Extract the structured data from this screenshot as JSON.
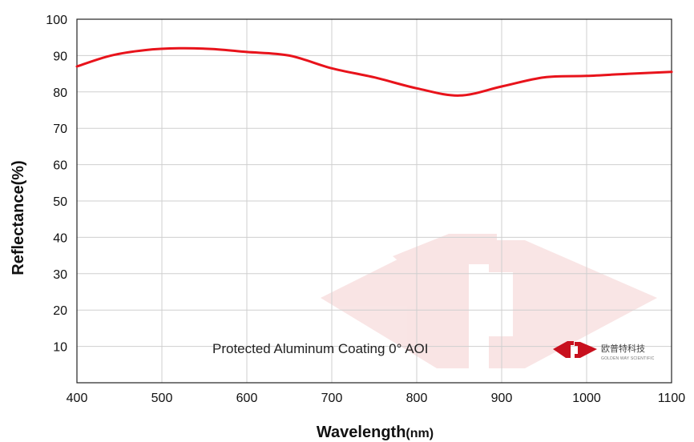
{
  "chart_data": {
    "type": "line",
    "title": "",
    "xlabel": "Wavelength",
    "xlabel_unit": "(nm)",
    "ylabel": "Reflectance(%)",
    "xlim": [
      400,
      1100
    ],
    "ylim": [
      0,
      100
    ],
    "xticks": [
      "400",
      "500",
      "600",
      "700",
      "800",
      "900",
      "1000",
      "1100"
    ],
    "yticks": [
      "10",
      "20",
      "30",
      "40",
      "50",
      "60",
      "70",
      "80",
      "90",
      "100"
    ],
    "grid": true,
    "series": [
      {
        "color": "#e8131b",
        "x": [
          400,
          440,
          480,
          520,
          560,
          600,
          650,
          700,
          750,
          800,
          850,
          900,
          950,
          1000,
          1050,
          1100
        ],
        "y": [
          87,
          90,
          91.5,
          92,
          91.8,
          91,
          90,
          86.5,
          84,
          81,
          79,
          81.5,
          84,
          84.4,
          85,
          85.5
        ]
      }
    ],
    "annotation": "Protected Aluminum Coating  0°  AOI"
  },
  "brand": {
    "logo": "golden-way-scientific-logo",
    "name_cn": "欧普特科技",
    "name_en": "GOLDEN WAY SCIENTIFIC",
    "logo_color": "#c8101e",
    "watermark_color": "#f7dcdc"
  }
}
